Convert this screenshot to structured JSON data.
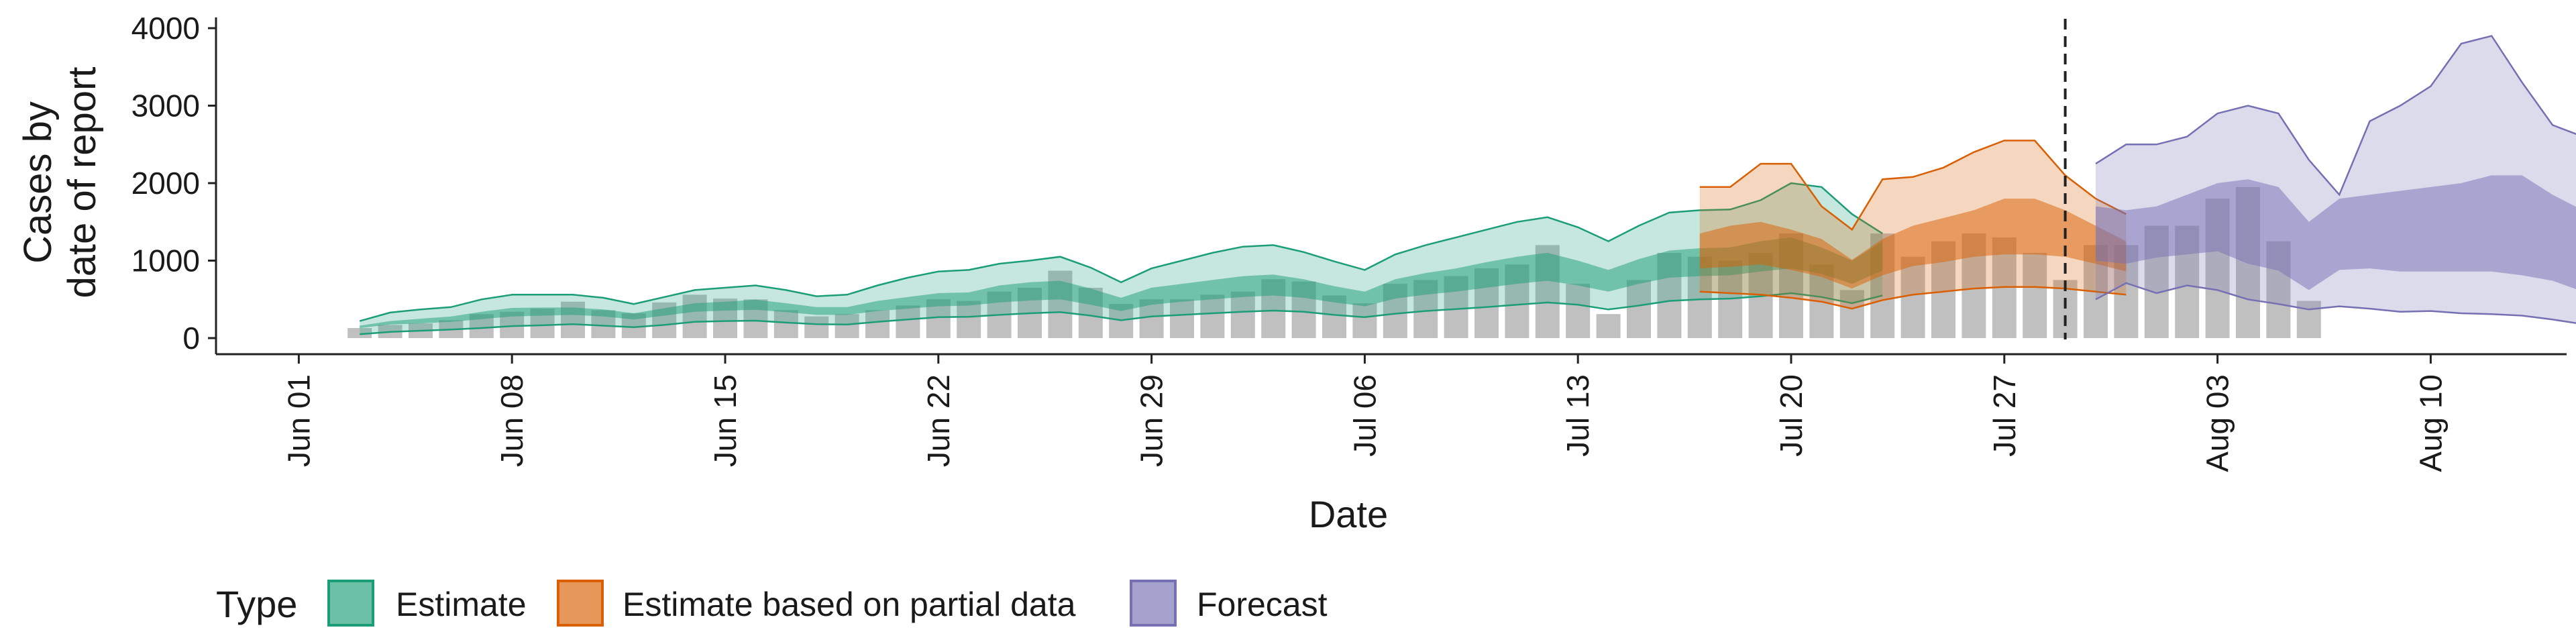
{
  "chart_data": {
    "type": "area",
    "title": "",
    "xlabel": "Date",
    "ylabel_lines": [
      "Cases by",
      "date of report"
    ],
    "x_start": "2020-05-31",
    "xlim": [
      "2020-05-31",
      "2020-08-15"
    ],
    "ylim": [
      0,
      4000
    ],
    "y_ticks": [
      0,
      1000,
      2000,
      3000,
      4000
    ],
    "x_ticks": [
      {
        "date": "2020-06-01",
        "label": "Jun 01"
      },
      {
        "date": "2020-06-08",
        "label": "Jun 08"
      },
      {
        "date": "2020-06-15",
        "label": "Jun 15"
      },
      {
        "date": "2020-06-22",
        "label": "Jun 22"
      },
      {
        "date": "2020-06-29",
        "label": "Jun 29"
      },
      {
        "date": "2020-07-06",
        "label": "Jul 06"
      },
      {
        "date": "2020-07-13",
        "label": "Jul 13"
      },
      {
        "date": "2020-07-20",
        "label": "Jul 20"
      },
      {
        "date": "2020-07-27",
        "label": "Jul 27"
      },
      {
        "date": "2020-08-03",
        "label": "Aug 03"
      },
      {
        "date": "2020-08-10",
        "label": "Aug 10"
      }
    ],
    "reported_cases": {
      "start_date": "2020-06-03",
      "values": [
        130,
        170,
        190,
        230,
        310,
        340,
        380,
        470,
        360,
        320,
        460,
        560,
        510,
        500,
        360,
        280,
        310,
        360,
        420,
        500,
        480,
        600,
        650,
        870,
        650,
        440,
        500,
        500,
        560,
        600,
        760,
        730,
        550,
        450,
        700,
        750,
        800,
        900,
        950,
        1200,
        700,
        310,
        750,
        1100,
        1050,
        1000,
        1100,
        1350,
        950,
        620,
        1350,
        1050,
        1250,
        1350,
        1300,
        1100,
        750,
        1200,
        1200,
        1450,
        1450,
        1800,
        1950,
        1250,
        480
      ]
    },
    "series": [
      {
        "name": "Estimate",
        "color": "#1b9e77",
        "start_date": "2020-06-03",
        "lower90": [
          50,
          80,
          95,
          110,
          130,
          155,
          165,
          180,
          160,
          140,
          170,
          210,
          220,
          225,
          200,
          180,
          175,
          210,
          240,
          270,
          275,
          300,
          320,
          335,
          290,
          230,
          280,
          300,
          320,
          340,
          355,
          340,
          300,
          270,
          315,
          350,
          375,
          400,
          430,
          460,
          430,
          370,
          420,
          480,
          500,
          510,
          540,
          580,
          530,
          450,
          550
        ],
        "lower50": [
          130,
          175,
          190,
          210,
          245,
          280,
          290,
          300,
          280,
          240,
          290,
          340,
          355,
          365,
          335,
          300,
          300,
          350,
          380,
          410,
          420,
          460,
          485,
          500,
          430,
          350,
          430,
          470,
          500,
          530,
          550,
          520,
          460,
          410,
          510,
          560,
          600,
          650,
          700,
          740,
          680,
          600,
          700,
          780,
          800,
          810,
          860,
          900,
          830,
          700,
          870
        ],
        "upper50": [
          160,
          220,
          250,
          280,
          340,
          390,
          395,
          395,
          370,
          320,
          385,
          450,
          470,
          495,
          450,
          400,
          400,
          480,
          530,
          580,
          590,
          680,
          720,
          740,
          640,
          520,
          650,
          700,
          750,
          800,
          820,
          760,
          670,
          600,
          760,
          840,
          900,
          980,
          1050,
          1100,
          1000,
          880,
          1020,
          1130,
          1160,
          1170,
          1250,
          1300,
          1170,
          1000,
          1250
        ],
        "upper90": [
          220,
          330,
          370,
          400,
          500,
          560,
          560,
          560,
          520,
          440,
          530,
          620,
          650,
          680,
          620,
          540,
          560,
          680,
          780,
          860,
          880,
          960,
          1000,
          1050,
          910,
          720,
          900,
          1000,
          1100,
          1180,
          1200,
          1110,
          990,
          880,
          1080,
          1200,
          1300,
          1400,
          1500,
          1560,
          1430,
          1250,
          1450,
          1620,
          1650,
          1660,
          1780,
          2000,
          1950,
          1600,
          1350
        ]
      },
      {
        "name": "Estimate based on partial data",
        "color": "#d95f02",
        "start_date": "2020-07-17",
        "lower90": [
          600,
          580,
          560,
          520,
          470,
          380,
          490,
          560,
          600,
          640,
          660,
          660,
          640,
          600,
          560
        ],
        "lower50": [
          900,
          920,
          950,
          880,
          790,
          640,
          810,
          930,
          980,
          1050,
          1080,
          1080,
          1050,
          960,
          860
        ],
        "upper50": [
          1350,
          1450,
          1500,
          1400,
          1280,
          1010,
          1280,
          1450,
          1550,
          1650,
          1800,
          1800,
          1650,
          1450,
          1250
        ],
        "upper90": [
          1950,
          1950,
          2250,
          2250,
          1700,
          1400,
          2050,
          2080,
          2200,
          2400,
          2550,
          2550,
          2100,
          1800,
          1600
        ]
      },
      {
        "name": "Forecast",
        "color": "#7570b3",
        "start_date": "2020-07-30",
        "lower90": [
          500,
          710,
          580,
          680,
          620,
          500,
          440,
          370,
          410,
          380,
          340,
          350,
          320,
          310,
          290,
          240,
          180,
          140
        ],
        "lower50": [
          1000,
          960,
          1040,
          1080,
          1120,
          960,
          870,
          620,
          880,
          900,
          860,
          860,
          860,
          860,
          810,
          740,
          600,
          500
        ],
        "upper50": [
          1700,
          1650,
          1700,
          1850,
          2000,
          2050,
          1950,
          1500,
          1800,
          1850,
          1900,
          1950,
          2000,
          2100,
          2100,
          1850,
          1650,
          1400
        ],
        "upper90": [
          2250,
          2500,
          2500,
          2600,
          2900,
          3000,
          2900,
          2300,
          1850,
          2800,
          3000,
          3250,
          3800,
          3900,
          3300,
          2750,
          2600,
          2600
        ]
      }
    ],
    "forecast_boundary_date": "2020-07-29",
    "legend": {
      "position": "bottom",
      "title": "Type",
      "items": [
        {
          "label": "Estimate",
          "color": "#1b9e77"
        },
        {
          "label": "Estimate based on partial data",
          "color": "#d95f02"
        },
        {
          "label": "Forecast",
          "color": "#7570b3"
        }
      ]
    }
  }
}
